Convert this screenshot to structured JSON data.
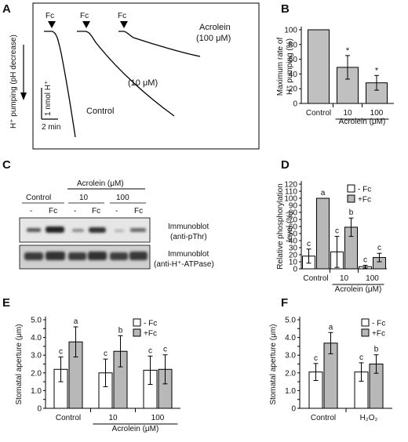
{
  "figure": {
    "panel_labels": [
      "A",
      "B",
      "C",
      "D",
      "E",
      "F"
    ]
  },
  "panel_a": {
    "marker": "Fc",
    "traces": [
      {
        "label": "Control"
      },
      {
        "label": "(10 μM)"
      },
      {
        "label_line1": "Acrolein",
        "label_line2": "(100 μM)"
      }
    ],
    "yaxis_label": "H⁺ pumping (pH decrease)",
    "scale_y": "1 nmol H⁺",
    "scale_x": "2 min"
  },
  "chart_data": [
    {
      "panel": "B",
      "type": "bar",
      "categories": [
        "Control",
        "10",
        "100"
      ],
      "values": [
        100,
        49,
        28
      ],
      "errors": [
        0,
        16,
        10
      ],
      "significance": [
        "",
        "*",
        "*"
      ],
      "ylabel_line1": "Maximum rate of",
      "ylabel_line2": "H⁺ pumping (%)",
      "group_label": "Acrolein (μM)",
      "ylim": [
        0,
        100
      ],
      "yticks": [
        "0",
        "20",
        "40",
        "60",
        "80",
        "100"
      ],
      "bar_color": "#c0c0c0"
    },
    {
      "panel": "D",
      "type": "bar",
      "categories": [
        "Control",
        "10",
        "100"
      ],
      "series": [
        {
          "name": "- Fc",
          "values": [
            18,
            24,
            3
          ],
          "errors": [
            10,
            22,
            2
          ],
          "letters": [
            "c",
            "c",
            "c"
          ],
          "color": "#ffffff"
        },
        {
          "name": "+Fc",
          "values": [
            100,
            59,
            16
          ],
          "errors": [
            0,
            13,
            6
          ],
          "letters": [
            "a",
            "b",
            "c"
          ],
          "color": "#b8b8b8"
        }
      ],
      "ylabel_line1": "Relative phosphorylation",
      "ylabel_line2": "level (%)",
      "group_label": "Acrolein (μM)",
      "ylim": [
        0,
        120
      ],
      "yticks": [
        "0",
        "10",
        "20",
        "30",
        "40",
        "50",
        "60",
        "70",
        "80",
        "90",
        "100",
        "110",
        "120"
      ]
    },
    {
      "panel": "E",
      "type": "bar",
      "categories": [
        "Control",
        "10",
        "100"
      ],
      "series": [
        {
          "name": "- Fc",
          "values": [
            2.2,
            2.0,
            2.15
          ],
          "errors": [
            0.7,
            0.78,
            0.8
          ],
          "letters": [
            "c",
            "c",
            "c"
          ],
          "color": "#ffffff"
        },
        {
          "name": "+Fc",
          "values": [
            3.75,
            3.22,
            2.2
          ],
          "errors": [
            0.85,
            0.88,
            0.82
          ],
          "letters": [
            "a",
            "b",
            "c"
          ],
          "color": "#b8b8b8"
        }
      ],
      "ylabel": "Stomatal aperture (μm)",
      "group_label": "Acrolein (μM)",
      "ylim": [
        0,
        5.0
      ],
      "yticks": [
        "0",
        "0.5",
        "1.0",
        "1.5",
        "2.0",
        "2.5",
        "3.0",
        "3.5",
        "4.0",
        "4.5",
        "5.0"
      ]
    },
    {
      "panel": "F",
      "type": "bar",
      "categories": [
        "Control",
        "H₂O₂"
      ],
      "series": [
        {
          "name": "- Fc",
          "values": [
            2.05,
            2.05
          ],
          "errors": [
            0.48,
            0.52
          ],
          "letters": [
            "c",
            "c"
          ],
          "color": "#ffffff"
        },
        {
          "name": "+Fc",
          "values": [
            3.68,
            2.5
          ],
          "errors": [
            0.6,
            0.52
          ],
          "letters": [
            "a",
            "b"
          ],
          "color": "#b8b8b8"
        }
      ],
      "ylabel": "Stomatal aperture (μm)",
      "ylim": [
        0,
        5.0
      ],
      "yticks": [
        "0",
        "0.5",
        "1.0",
        "1.5",
        "2.0",
        "2.5",
        "3.0",
        "3.5",
        "4.0",
        "4.5",
        "5.0"
      ]
    }
  ],
  "panel_c": {
    "header": "Acrolein (μM)",
    "groups": [
      "Control",
      "10",
      "100"
    ],
    "lanes": [
      "-",
      "Fc",
      "-",
      "Fc",
      "-",
      "Fc"
    ],
    "blot1_line1": "Immunoblot",
    "blot1_line2": "(anti-pThr)",
    "blot2_line1": "Immunoblot",
    "blot2_line2": "(anti-H⁺-ATPase)"
  }
}
